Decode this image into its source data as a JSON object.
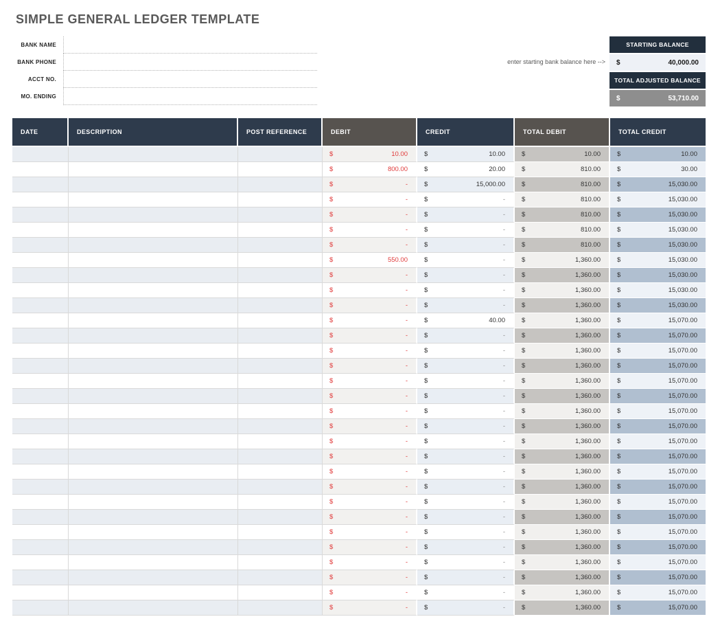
{
  "title": "SIMPLE GENERAL LEDGER TEMPLATE",
  "bank_info": {
    "fields": [
      {
        "label": "BANK NAME",
        "value": ""
      },
      {
        "label": "BANK PHONE",
        "value": ""
      },
      {
        "label": "ACCT NO.",
        "value": ""
      },
      {
        "label": "MO. ENDING",
        "value": ""
      }
    ]
  },
  "balance_box": {
    "starting_label": "STARTING BALANCE",
    "starting_currency": "$",
    "starting_value": "40,000.00",
    "note": "enter starting bank balance here -->",
    "adjusted_label": "TOTAL ADJUSTED BALANCE",
    "adjusted_currency": "$",
    "adjusted_value": "53,710.00"
  },
  "colors": {
    "navy_header": "#2e3b4c",
    "gray_header": "#57534f",
    "debit_red": "#e03a3a",
    "title_gray": "#595959",
    "stripe_blue": "#e9edf2",
    "stripe_debit": "#f2f1ef",
    "stripe_total_debit": "#c6c4c1",
    "stripe_total_credit": "#b0bfd0",
    "adjusted_row_gray": "#8e8e8e"
  },
  "table": {
    "currency_symbol": "$",
    "columns": [
      "DATE",
      "DESCRIPTION",
      "POST REFERENCE",
      "DEBIT",
      "CREDIT",
      "TOTAL DEBIT",
      "TOTAL CREDIT"
    ],
    "rows": [
      {
        "date": "",
        "description": "",
        "post_reference": "",
        "debit": "10.00",
        "credit": "10.00",
        "total_debit": "10.00",
        "total_credit": "10.00"
      },
      {
        "date": "",
        "description": "",
        "post_reference": "",
        "debit": "800.00",
        "credit": "20.00",
        "total_debit": "810.00",
        "total_credit": "30.00"
      },
      {
        "date": "",
        "description": "",
        "post_reference": "",
        "debit": "-",
        "credit": "15,000.00",
        "total_debit": "810.00",
        "total_credit": "15,030.00"
      },
      {
        "date": "",
        "description": "",
        "post_reference": "",
        "debit": "-",
        "credit": "-",
        "total_debit": "810.00",
        "total_credit": "15,030.00"
      },
      {
        "date": "",
        "description": "",
        "post_reference": "",
        "debit": "-",
        "credit": "-",
        "total_debit": "810.00",
        "total_credit": "15,030.00"
      },
      {
        "date": "",
        "description": "",
        "post_reference": "",
        "debit": "-",
        "credit": "-",
        "total_debit": "810.00",
        "total_credit": "15,030.00"
      },
      {
        "date": "",
        "description": "",
        "post_reference": "",
        "debit": "-",
        "credit": "-",
        "total_debit": "810.00",
        "total_credit": "15,030.00"
      },
      {
        "date": "",
        "description": "",
        "post_reference": "",
        "debit": "550.00",
        "credit": "-",
        "total_debit": "1,360.00",
        "total_credit": "15,030.00"
      },
      {
        "date": "",
        "description": "",
        "post_reference": "",
        "debit": "-",
        "credit": "-",
        "total_debit": "1,360.00",
        "total_credit": "15,030.00"
      },
      {
        "date": "",
        "description": "",
        "post_reference": "",
        "debit": "-",
        "credit": "-",
        "total_debit": "1,360.00",
        "total_credit": "15,030.00"
      },
      {
        "date": "",
        "description": "",
        "post_reference": "",
        "debit": "-",
        "credit": "-",
        "total_debit": "1,360.00",
        "total_credit": "15,030.00"
      },
      {
        "date": "",
        "description": "",
        "post_reference": "",
        "debit": "-",
        "credit": "40.00",
        "total_debit": "1,360.00",
        "total_credit": "15,070.00"
      },
      {
        "date": "",
        "description": "",
        "post_reference": "",
        "debit": "-",
        "credit": "-",
        "total_debit": "1,360.00",
        "total_credit": "15,070.00"
      },
      {
        "date": "",
        "description": "",
        "post_reference": "",
        "debit": "-",
        "credit": "-",
        "total_debit": "1,360.00",
        "total_credit": "15,070.00"
      },
      {
        "date": "",
        "description": "",
        "post_reference": "",
        "debit": "-",
        "credit": "-",
        "total_debit": "1,360.00",
        "total_credit": "15,070.00"
      },
      {
        "date": "",
        "description": "",
        "post_reference": "",
        "debit": "-",
        "credit": "-",
        "total_debit": "1,360.00",
        "total_credit": "15,070.00"
      },
      {
        "date": "",
        "description": "",
        "post_reference": "",
        "debit": "-",
        "credit": "-",
        "total_debit": "1,360.00",
        "total_credit": "15,070.00"
      },
      {
        "date": "",
        "description": "",
        "post_reference": "",
        "debit": "-",
        "credit": "-",
        "total_debit": "1,360.00",
        "total_credit": "15,070.00"
      },
      {
        "date": "",
        "description": "",
        "post_reference": "",
        "debit": "-",
        "credit": "-",
        "total_debit": "1,360.00",
        "total_credit": "15,070.00"
      },
      {
        "date": "",
        "description": "",
        "post_reference": "",
        "debit": "-",
        "credit": "-",
        "total_debit": "1,360.00",
        "total_credit": "15,070.00"
      },
      {
        "date": "",
        "description": "",
        "post_reference": "",
        "debit": "-",
        "credit": "-",
        "total_debit": "1,360.00",
        "total_credit": "15,070.00"
      },
      {
        "date": "",
        "description": "",
        "post_reference": "",
        "debit": "-",
        "credit": "-",
        "total_debit": "1,360.00",
        "total_credit": "15,070.00"
      },
      {
        "date": "",
        "description": "",
        "post_reference": "",
        "debit": "-",
        "credit": "-",
        "total_debit": "1,360.00",
        "total_credit": "15,070.00"
      },
      {
        "date": "",
        "description": "",
        "post_reference": "",
        "debit": "-",
        "credit": "-",
        "total_debit": "1,360.00",
        "total_credit": "15,070.00"
      },
      {
        "date": "",
        "description": "",
        "post_reference": "",
        "debit": "-",
        "credit": "-",
        "total_debit": "1,360.00",
        "total_credit": "15,070.00"
      },
      {
        "date": "",
        "description": "",
        "post_reference": "",
        "debit": "-",
        "credit": "-",
        "total_debit": "1,360.00",
        "total_credit": "15,070.00"
      },
      {
        "date": "",
        "description": "",
        "post_reference": "",
        "debit": "-",
        "credit": "-",
        "total_debit": "1,360.00",
        "total_credit": "15,070.00"
      },
      {
        "date": "",
        "description": "",
        "post_reference": "",
        "debit": "-",
        "credit": "-",
        "total_debit": "1,360.00",
        "total_credit": "15,070.00"
      },
      {
        "date": "",
        "description": "",
        "post_reference": "",
        "debit": "-",
        "credit": "-",
        "total_debit": "1,360.00",
        "total_credit": "15,070.00"
      },
      {
        "date": "",
        "description": "",
        "post_reference": "",
        "debit": "-",
        "credit": "-",
        "total_debit": "1,360.00",
        "total_credit": "15,070.00"
      },
      {
        "date": "",
        "description": "",
        "post_reference": "",
        "debit": "-",
        "credit": "-",
        "total_debit": "1,360.00",
        "total_credit": "15,070.00"
      }
    ]
  }
}
